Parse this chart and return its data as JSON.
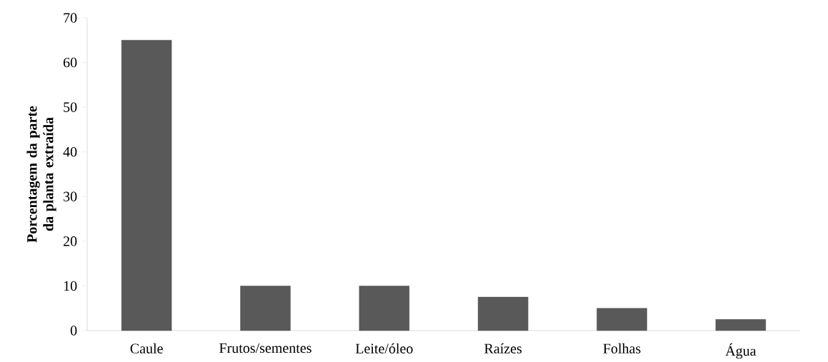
{
  "chart_data": {
    "type": "bar",
    "ylabel": "Porcentagem da parte da planta extraída",
    "categories": [
      "Caule",
      "Frutos/sementes",
      "Leite/óleo",
      "Raízes",
      "Folhas",
      "Água"
    ],
    "values": [
      65,
      10,
      10,
      7.5,
      5,
      2.5
    ],
    "color": "#595959",
    "ylim": [
      0,
      70
    ],
    "yticks": [
      0,
      10,
      20,
      30,
      40,
      50,
      60,
      70
    ],
    "grid": false
  }
}
